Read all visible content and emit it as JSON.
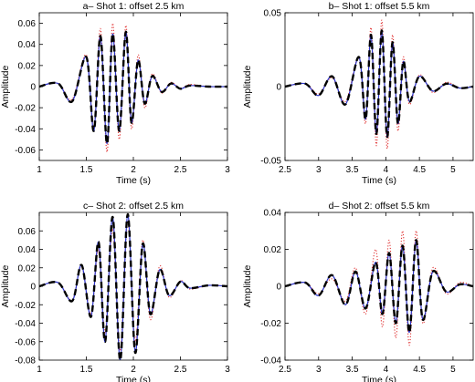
{
  "chart_data": [
    {
      "type": "line",
      "title": "a– Shot 1: offset 2.5 km",
      "xlabel": "Time (s)",
      "ylabel": "Amplitude",
      "xlim": [
        1,
        3
      ],
      "ylim": [
        -0.07,
        0.07
      ],
      "xticks": [
        1,
        1.5,
        2,
        2.5,
        3
      ],
      "xtick_labels": [
        "1",
        "1.5",
        "2",
        "2.5",
        "3"
      ],
      "yticks": [
        -0.06,
        -0.04,
        -0.02,
        0,
        0.02,
        0.04,
        0.06
      ],
      "ytick_labels": [
        "-0.06",
        "-0.04",
        "-0.02",
        "0",
        "0.02",
        "0.04",
        "0.06"
      ],
      "series": [
        {
          "style": "dotted",
          "color": "#e03030",
          "x": [
            1.0,
            1.2,
            1.35,
            1.5,
            1.58,
            1.65,
            1.72,
            1.78,
            1.85,
            1.92,
            1.98,
            2.05,
            2.12,
            2.2,
            2.3,
            2.4,
            2.5,
            2.6,
            2.8,
            3.0
          ],
          "y": [
            0.0,
            0.003,
            -0.012,
            0.03,
            -0.04,
            0.055,
            -0.062,
            0.06,
            -0.05,
            0.058,
            -0.04,
            0.03,
            -0.02,
            0.012,
            -0.006,
            0.004,
            -0.002,
            0.002,
            0.0,
            0.0
          ]
        },
        {
          "style": "solid",
          "color": "#2b35c8",
          "x": [
            1.0,
            1.2,
            1.35,
            1.5,
            1.58,
            1.65,
            1.72,
            1.78,
            1.85,
            1.92,
            1.98,
            2.05,
            2.12,
            2.2,
            2.3,
            2.4,
            2.5,
            2.6,
            2.8,
            3.0
          ],
          "y": [
            0.0,
            0.003,
            -0.014,
            0.028,
            -0.042,
            0.048,
            -0.054,
            0.05,
            -0.042,
            0.052,
            -0.034,
            0.025,
            -0.016,
            0.01,
            -0.005,
            0.003,
            -0.002,
            0.001,
            0.0,
            0.0
          ]
        },
        {
          "style": "dashed",
          "color": "#000000",
          "x": [
            1.0,
            1.2,
            1.35,
            1.5,
            1.58,
            1.65,
            1.72,
            1.78,
            1.85,
            1.92,
            1.98,
            2.05,
            2.12,
            2.2,
            2.3,
            2.4,
            2.5,
            2.6,
            2.8,
            3.0
          ],
          "y": [
            0.0,
            0.003,
            -0.014,
            0.028,
            -0.042,
            0.048,
            -0.054,
            0.05,
            -0.042,
            0.052,
            -0.034,
            0.025,
            -0.016,
            0.01,
            -0.005,
            0.003,
            -0.002,
            0.001,
            0.0,
            0.0
          ]
        }
      ]
    },
    {
      "type": "line",
      "title": "b– Shot 1: offset 5.5 km",
      "xlabel": "Time (s)",
      "ylabel": "Amplitude",
      "xlim": [
        2.5,
        5.3
      ],
      "ylim": [
        -0.05,
        0.05
      ],
      "xticks": [
        2.5,
        3,
        3.5,
        4,
        4.5,
        5
      ],
      "xtick_labels": [
        "2.5",
        "3",
        "3.5",
        "4",
        "4.5",
        "5"
      ],
      "yticks": [
        -0.05,
        0,
        0.05
      ],
      "ytick_labels": [
        "-0.05",
        "0",
        "0.05"
      ],
      "series": [
        {
          "style": "dotted",
          "color": "#e03030",
          "x": [
            2.5,
            2.8,
            3.0,
            3.2,
            3.4,
            3.6,
            3.7,
            3.78,
            3.86,
            3.94,
            4.02,
            4.1,
            4.18,
            4.26,
            4.35,
            4.5,
            4.7,
            4.9,
            5.1,
            5.3
          ],
          "y": [
            0.0,
            0.002,
            -0.005,
            0.006,
            -0.01,
            0.02,
            -0.025,
            0.04,
            -0.04,
            0.045,
            -0.042,
            0.035,
            -0.03,
            0.02,
            -0.012,
            0.008,
            -0.004,
            0.003,
            -0.001,
            0.0
          ]
        },
        {
          "style": "solid",
          "color": "#2b35c8",
          "x": [
            2.5,
            2.8,
            3.0,
            3.2,
            3.4,
            3.6,
            3.7,
            3.78,
            3.86,
            3.94,
            4.02,
            4.1,
            4.18,
            4.26,
            4.35,
            4.5,
            4.7,
            4.9,
            5.1,
            5.3
          ],
          "y": [
            0.0,
            0.002,
            -0.006,
            0.007,
            -0.012,
            0.02,
            -0.022,
            0.035,
            -0.032,
            0.038,
            -0.034,
            0.03,
            -0.025,
            0.017,
            -0.01,
            0.007,
            -0.003,
            0.002,
            -0.001,
            0.0
          ]
        },
        {
          "style": "dashed",
          "color": "#000000",
          "x": [
            2.5,
            2.8,
            3.0,
            3.2,
            3.4,
            3.6,
            3.7,
            3.78,
            3.86,
            3.94,
            4.02,
            4.1,
            4.18,
            4.26,
            4.35,
            4.5,
            4.7,
            4.9,
            5.1,
            5.3
          ],
          "y": [
            0.0,
            0.002,
            -0.006,
            0.007,
            -0.012,
            0.02,
            -0.022,
            0.035,
            -0.032,
            0.038,
            -0.034,
            0.03,
            -0.025,
            0.017,
            -0.01,
            0.007,
            -0.003,
            0.002,
            -0.001,
            0.0
          ]
        }
      ]
    },
    {
      "type": "line",
      "title": "c– Shot 2: offset 2.5 km",
      "xlabel": "Time (s)",
      "ylabel": "Amplitude",
      "xlim": [
        1,
        3
      ],
      "ylim": [
        -0.08,
        0.08
      ],
      "xticks": [
        1,
        1.5,
        2,
        2.5,
        3
      ],
      "xtick_labels": [
        "1",
        "1.5",
        "2",
        "2.5",
        "3"
      ],
      "yticks": [
        -0.08,
        -0.06,
        -0.04,
        -0.02,
        0,
        0.02,
        0.04,
        0.06
      ],
      "ytick_labels": [
        "-0.08",
        "-0.06",
        "-0.04",
        "-0.02",
        "0",
        "0.02",
        "0.04",
        "0.06"
      ],
      "series": [
        {
          "style": "dotted",
          "color": "#e03030",
          "x": [
            1.0,
            1.2,
            1.35,
            1.45,
            1.55,
            1.63,
            1.7,
            1.78,
            1.86,
            1.94,
            2.02,
            2.1,
            2.18,
            2.28,
            2.38,
            2.5,
            2.6,
            2.8,
            3.0
          ],
          "y": [
            0.0,
            0.004,
            -0.015,
            0.022,
            -0.03,
            0.04,
            -0.05,
            0.062,
            -0.07,
            0.07,
            -0.06,
            0.05,
            -0.036,
            0.022,
            -0.012,
            0.006,
            -0.003,
            0.001,
            0.0
          ]
        },
        {
          "style": "solid",
          "color": "#2b35c8",
          "x": [
            1.0,
            1.2,
            1.35,
            1.45,
            1.55,
            1.63,
            1.7,
            1.78,
            1.86,
            1.94,
            2.02,
            2.1,
            2.18,
            2.28,
            2.38,
            2.5,
            2.6,
            2.8,
            3.0
          ],
          "y": [
            0.0,
            0.004,
            -0.016,
            0.023,
            -0.033,
            0.048,
            -0.06,
            0.075,
            -0.08,
            0.078,
            -0.072,
            0.046,
            -0.03,
            0.018,
            -0.01,
            0.005,
            -0.002,
            0.001,
            0.0
          ]
        },
        {
          "style": "dashed",
          "color": "#000000",
          "x": [
            1.0,
            1.2,
            1.35,
            1.45,
            1.55,
            1.63,
            1.7,
            1.78,
            1.86,
            1.94,
            2.02,
            2.1,
            2.18,
            2.28,
            2.38,
            2.5,
            2.6,
            2.8,
            3.0
          ],
          "y": [
            0.0,
            0.004,
            -0.016,
            0.023,
            -0.033,
            0.048,
            -0.06,
            0.075,
            -0.08,
            0.078,
            -0.072,
            0.046,
            -0.03,
            0.018,
            -0.01,
            0.005,
            -0.002,
            0.001,
            0.0
          ]
        }
      ]
    },
    {
      "type": "line",
      "title": "d– Shot 2: offset 5.5 km",
      "xlabel": "Time (s)",
      "ylabel": "Amplitude",
      "xlim": [
        2.5,
        5.3
      ],
      "ylim": [
        -0.04,
        0.04
      ],
      "xticks": [
        2.5,
        3,
        3.5,
        4,
        4.5,
        5
      ],
      "xtick_labels": [
        "2.5",
        "3",
        "3.5",
        "4",
        "4.5",
        "5"
      ],
      "yticks": [
        -0.04,
        -0.02,
        0,
        0.02,
        0.04
      ],
      "ytick_labels": [
        "-0.04",
        "-0.02",
        "0",
        "0.02",
        "0.04"
      ],
      "series": [
        {
          "style": "dotted",
          "color": "#e03030",
          "x": [
            2.5,
            2.8,
            3.0,
            3.2,
            3.4,
            3.55,
            3.7,
            3.85,
            3.95,
            4.05,
            4.15,
            4.25,
            4.35,
            4.45,
            4.55,
            4.7,
            4.9,
            5.1,
            5.3
          ],
          "y": [
            0.0,
            0.002,
            -0.004,
            0.004,
            -0.008,
            0.01,
            -0.015,
            0.02,
            -0.022,
            0.025,
            -0.028,
            0.03,
            -0.032,
            0.03,
            -0.02,
            0.01,
            -0.004,
            0.002,
            0.0
          ]
        },
        {
          "style": "solid",
          "color": "#2b35c8",
          "x": [
            2.5,
            2.8,
            3.0,
            3.2,
            3.4,
            3.55,
            3.7,
            3.85,
            3.95,
            4.05,
            4.15,
            4.25,
            4.35,
            4.45,
            4.55,
            4.7,
            4.9,
            5.1,
            5.3
          ],
          "y": [
            0.0,
            0.002,
            -0.005,
            0.006,
            -0.01,
            0.008,
            -0.012,
            0.013,
            -0.015,
            0.018,
            -0.02,
            0.022,
            -0.025,
            0.025,
            -0.018,
            0.008,
            -0.003,
            0.001,
            0.0
          ]
        },
        {
          "style": "dashed",
          "color": "#000000",
          "x": [
            2.5,
            2.8,
            3.0,
            3.2,
            3.4,
            3.55,
            3.7,
            3.85,
            3.95,
            4.05,
            4.15,
            4.25,
            4.35,
            4.45,
            4.55,
            4.7,
            4.9,
            5.1,
            5.3
          ],
          "y": [
            0.0,
            0.002,
            -0.005,
            0.006,
            -0.01,
            0.008,
            -0.012,
            0.013,
            -0.015,
            0.018,
            -0.02,
            0.022,
            -0.025,
            0.025,
            -0.018,
            0.008,
            -0.003,
            0.001,
            0.0
          ]
        }
      ]
    }
  ]
}
